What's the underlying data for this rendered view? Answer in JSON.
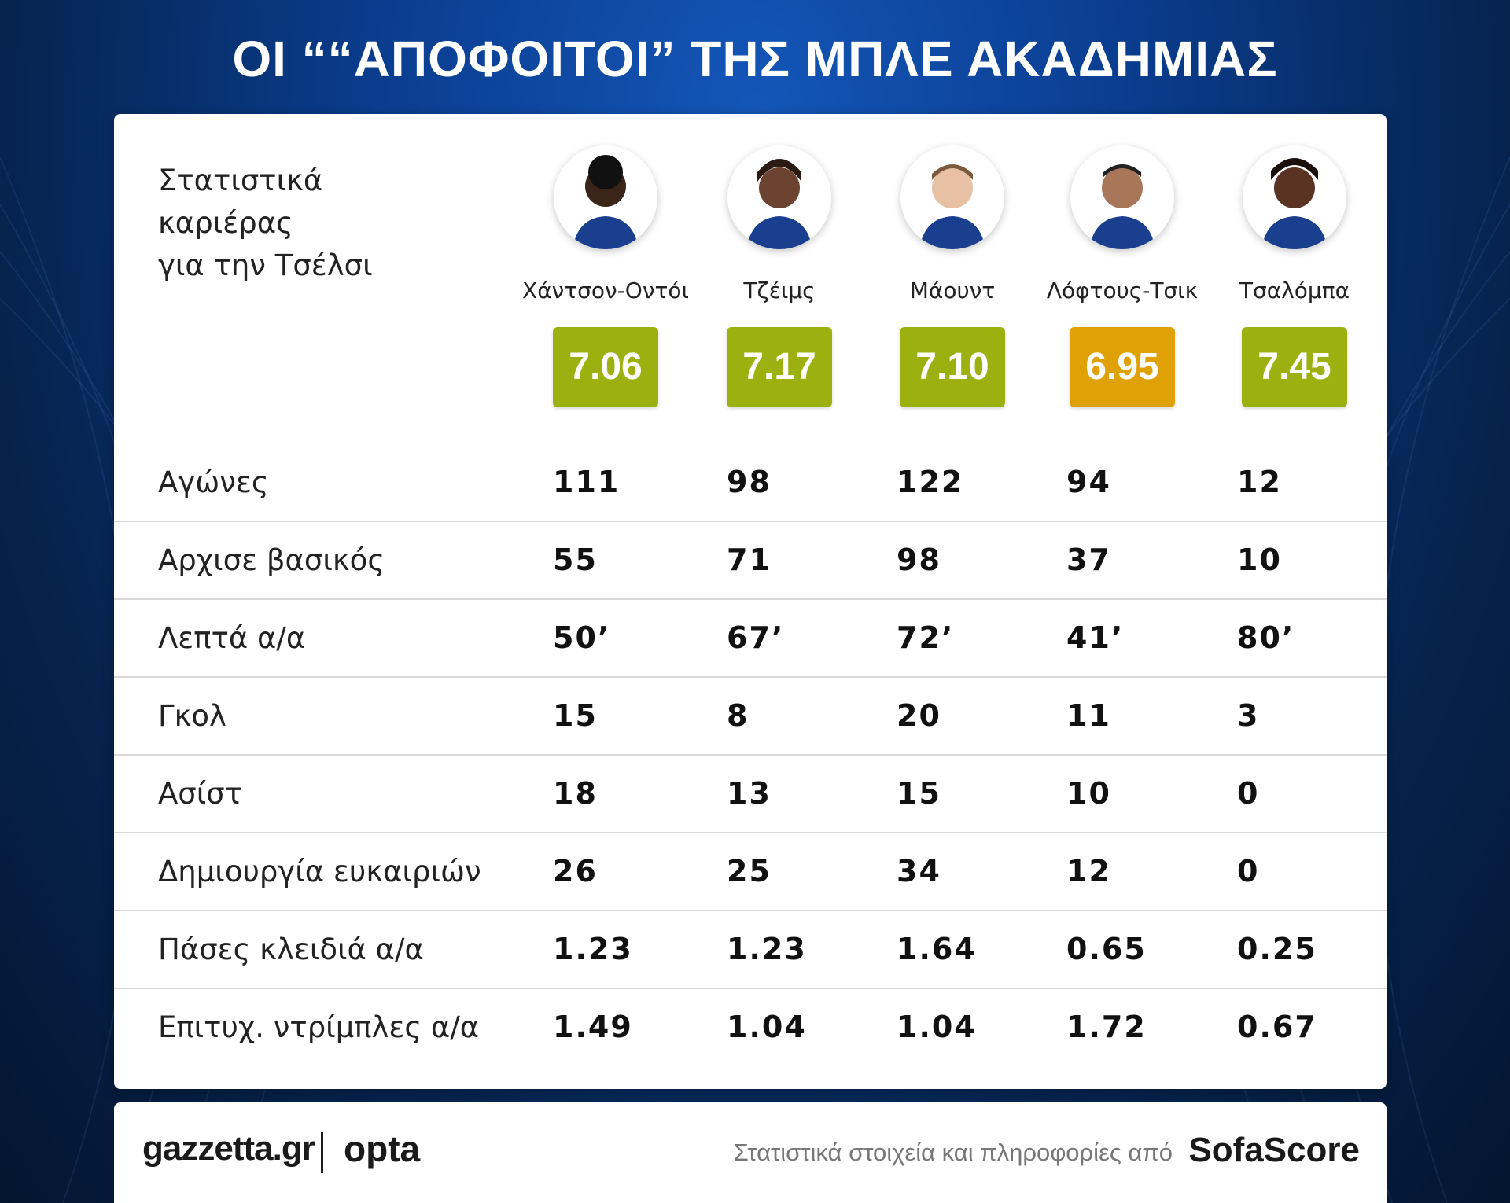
{
  "header": {
    "title": "ΟΙ ““ΑΠΟΦΟΙΤΟΙ” ΤΗΣ ΜΠΛΕ ΑΚΑΔΗΜΙΑΣ"
  },
  "intro": {
    "line1": "Στατιστικά",
    "line2": "καριέρας",
    "line3": "για την Τσέλσι"
  },
  "colors": {
    "rating_green": "#9cb10f",
    "rating_orange": "#dfa106"
  },
  "players": [
    {
      "name": "Χάντσον-Οντόι",
      "rating": "7.06",
      "rating_color": "#9cb10f",
      "icon": "player-portrait-icon"
    },
    {
      "name": "Τζέιμς",
      "rating": "7.17",
      "rating_color": "#9cb10f",
      "icon": "player-portrait-icon"
    },
    {
      "name": "Μάουντ",
      "rating": "7.10",
      "rating_color": "#9cb10f",
      "icon": "player-portrait-icon"
    },
    {
      "name": "Λόφτους-Τσικ",
      "rating": "6.95",
      "rating_color": "#dfa106",
      "icon": "player-portrait-icon"
    },
    {
      "name": "Τσαλόμπα",
      "rating": "7.45",
      "rating_color": "#9cb10f",
      "icon": "player-portrait-icon"
    }
  ],
  "stats": [
    {
      "label": "Αγώνες",
      "values": [
        "111",
        "98",
        "122",
        "94",
        "12"
      ]
    },
    {
      "label": "Αρχισε βασικός",
      "values": [
        "55",
        "71",
        "98",
        "37",
        "10"
      ]
    },
    {
      "label": "Λεπτά α/α",
      "values": [
        "50’",
        "67’",
        "72’",
        "41’",
        "80’"
      ]
    },
    {
      "label": "Γκολ",
      "values": [
        "15",
        "8",
        "20",
        "11",
        "3"
      ]
    },
    {
      "label": "Ασίστ",
      "values": [
        "18",
        "13",
        "15",
        "10",
        "0"
      ]
    },
    {
      "label": "Δημιουργία ευκαιριών",
      "values": [
        "26",
        "25",
        "34",
        "12",
        "0"
      ]
    },
    {
      "label": "Πάσες κλειδιά α/α",
      "values": [
        "1.23",
        "1.23",
        "1.64",
        "0.65",
        "0.25"
      ]
    },
    {
      "label": "Επιτυχ. ντρίμπλες α/α",
      "values": [
        "1.49",
        "1.04",
        "1.04",
        "1.72",
        "0.67"
      ]
    }
  ],
  "footer": {
    "brand_gazzetta": "gazzetta.gr",
    "brand_opta": "opta",
    "source_text": "Στατιστικά στοιχεία και πληροφορίες από",
    "brand_sofascore": "SofaScore"
  }
}
